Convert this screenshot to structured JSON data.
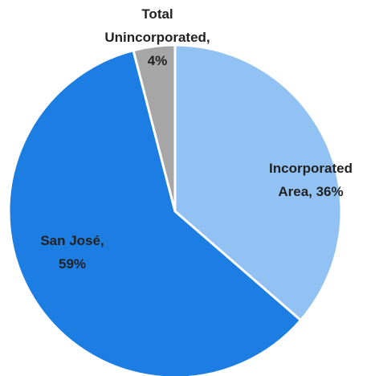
{
  "chart_data": {
    "type": "pie",
    "values": [
      36,
      59,
      4
    ],
    "value_labels": [
      "Incorporated Area, 36%",
      "San José, 59%",
      "Total Unincorporated, 4%"
    ],
    "colors": [
      "#92c2f4",
      "#1c7de2",
      "#a6a6a6"
    ],
    "start_angle": 90,
    "direction": "clockwise"
  }
}
